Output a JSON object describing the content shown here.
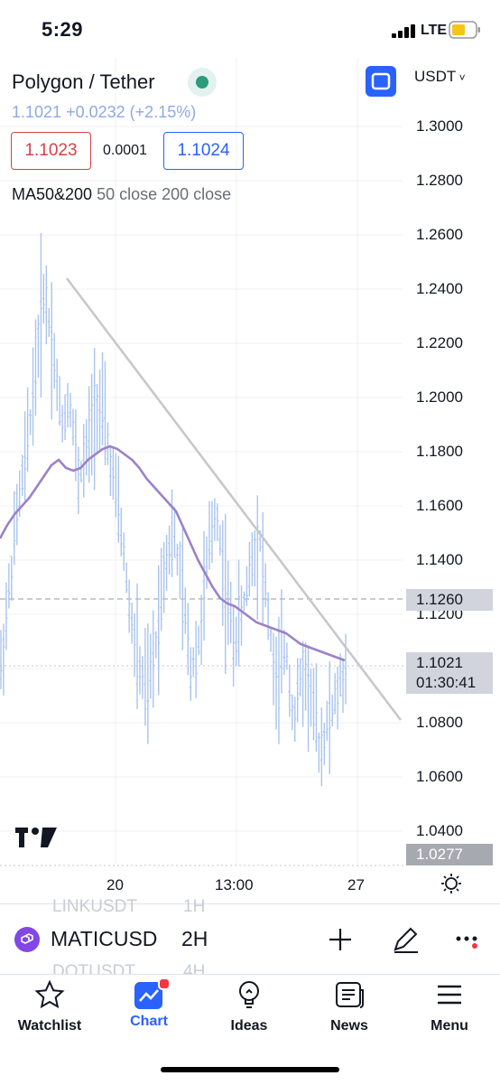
{
  "status_bar": {
    "time": "5:29",
    "network": "LTE"
  },
  "header": {
    "title": "Polygon / Tether",
    "last_price": "1.1021",
    "change": "+0.0232",
    "change_pct": "(+2.15%)",
    "bid": "1.1023",
    "spread": "0.0001",
    "ask": "1.1024",
    "indicator_name": "MA50&200",
    "indicator_params": "50 close 200 close",
    "currency": "USDT"
  },
  "chart_data": {
    "type": "line",
    "title": "",
    "y_ticks": [
      "1.3000",
      "1.2800",
      "1.2600",
      "1.2400",
      "1.2200",
      "1.2000",
      "1.1800",
      "1.1600",
      "1.1400",
      "1.1200",
      "1.0800",
      "1.0600",
      "1.0400"
    ],
    "ylim": [
      1.02,
      1.3
    ],
    "x_ticks": [
      "20",
      "13:00",
      "27"
    ],
    "price_tags": {
      "high_tag": "1.1260",
      "last_price": "1.1021",
      "countdown": "01:30:41",
      "low_tag": "1.0277"
    },
    "series": [
      {
        "color": "#9b82c8",
        "x": [
          0,
          1,
          2,
          3,
          4,
          5,
          6,
          7,
          8,
          9,
          10,
          11,
          12,
          13,
          14,
          15,
          16,
          17,
          18,
          19,
          20,
          21,
          22,
          23,
          24,
          25,
          26,
          27,
          28,
          29,
          30,
          31,
          32,
          33,
          34,
          35,
          36,
          37,
          38,
          39,
          40,
          41,
          42,
          43,
          44,
          45,
          46,
          47
        ],
        "values": [
          1.148,
          1.153,
          1.157,
          1.16,
          1.163,
          1.167,
          1.171,
          1.175,
          1.177,
          1.174,
          1.173,
          1.174,
          1.177,
          1.179,
          1.181,
          1.182,
          1.181,
          1.179,
          1.177,
          1.174,
          1.17,
          1.167,
          1.164,
          1.161,
          1.158,
          1.152,
          1.146,
          1.14,
          1.135,
          1.13,
          1.126,
          1.124,
          1.123,
          1.121,
          1.119,
          1.117,
          1.116,
          1.115,
          1.114,
          1.113,
          1.111,
          1.109,
          1.108,
          1.107,
          1.106,
          1.105,
          1.104,
          1.103
        ]
      },
      {
        "color": "#c8c8c8",
        "x": [
          0,
          100
        ],
        "values": [
          1.244,
          1.081
        ]
      }
    ],
    "candles_close": [
      1.1,
      1.13,
      1.16,
      1.18,
      1.21,
      1.24,
      1.22,
      1.19,
      1.2,
      1.17,
      1.18,
      1.2,
      1.19,
      1.17,
      1.15,
      1.12,
      1.1,
      1.09,
      1.11,
      1.14,
      1.15,
      1.13,
      1.1,
      1.11,
      1.14,
      1.16,
      1.13,
      1.11,
      1.12,
      1.14,
      1.15,
      1.12,
      1.09,
      1.11,
      1.08,
      1.1,
      1.09,
      1.07,
      1.08,
      1.09,
      1.1
    ],
    "grid": true
  },
  "toolbar": {
    "symbol": "MATICUSD",
    "interval": "2H",
    "ghost_above": "LINKUSDT",
    "ghost_above_interval": "1H",
    "ghost_below": "DOTUSDT",
    "ghost_below_interval": "4H"
  },
  "tabs": [
    {
      "label": "Watchlist",
      "icon": "star-icon"
    },
    {
      "label": "Chart",
      "icon": "chart-icon"
    },
    {
      "label": "Ideas",
      "icon": "lightbulb-icon"
    },
    {
      "label": "News",
      "icon": "newspaper-icon"
    },
    {
      "label": "Menu",
      "icon": "hamburger-icon"
    }
  ],
  "colors": {
    "accent": "#2962ff",
    "bid": "#d6404a",
    "candles": "#aac4ec",
    "ma": "#9b82c8",
    "trendline": "#c8c8c8",
    "notification": "#f23645"
  }
}
